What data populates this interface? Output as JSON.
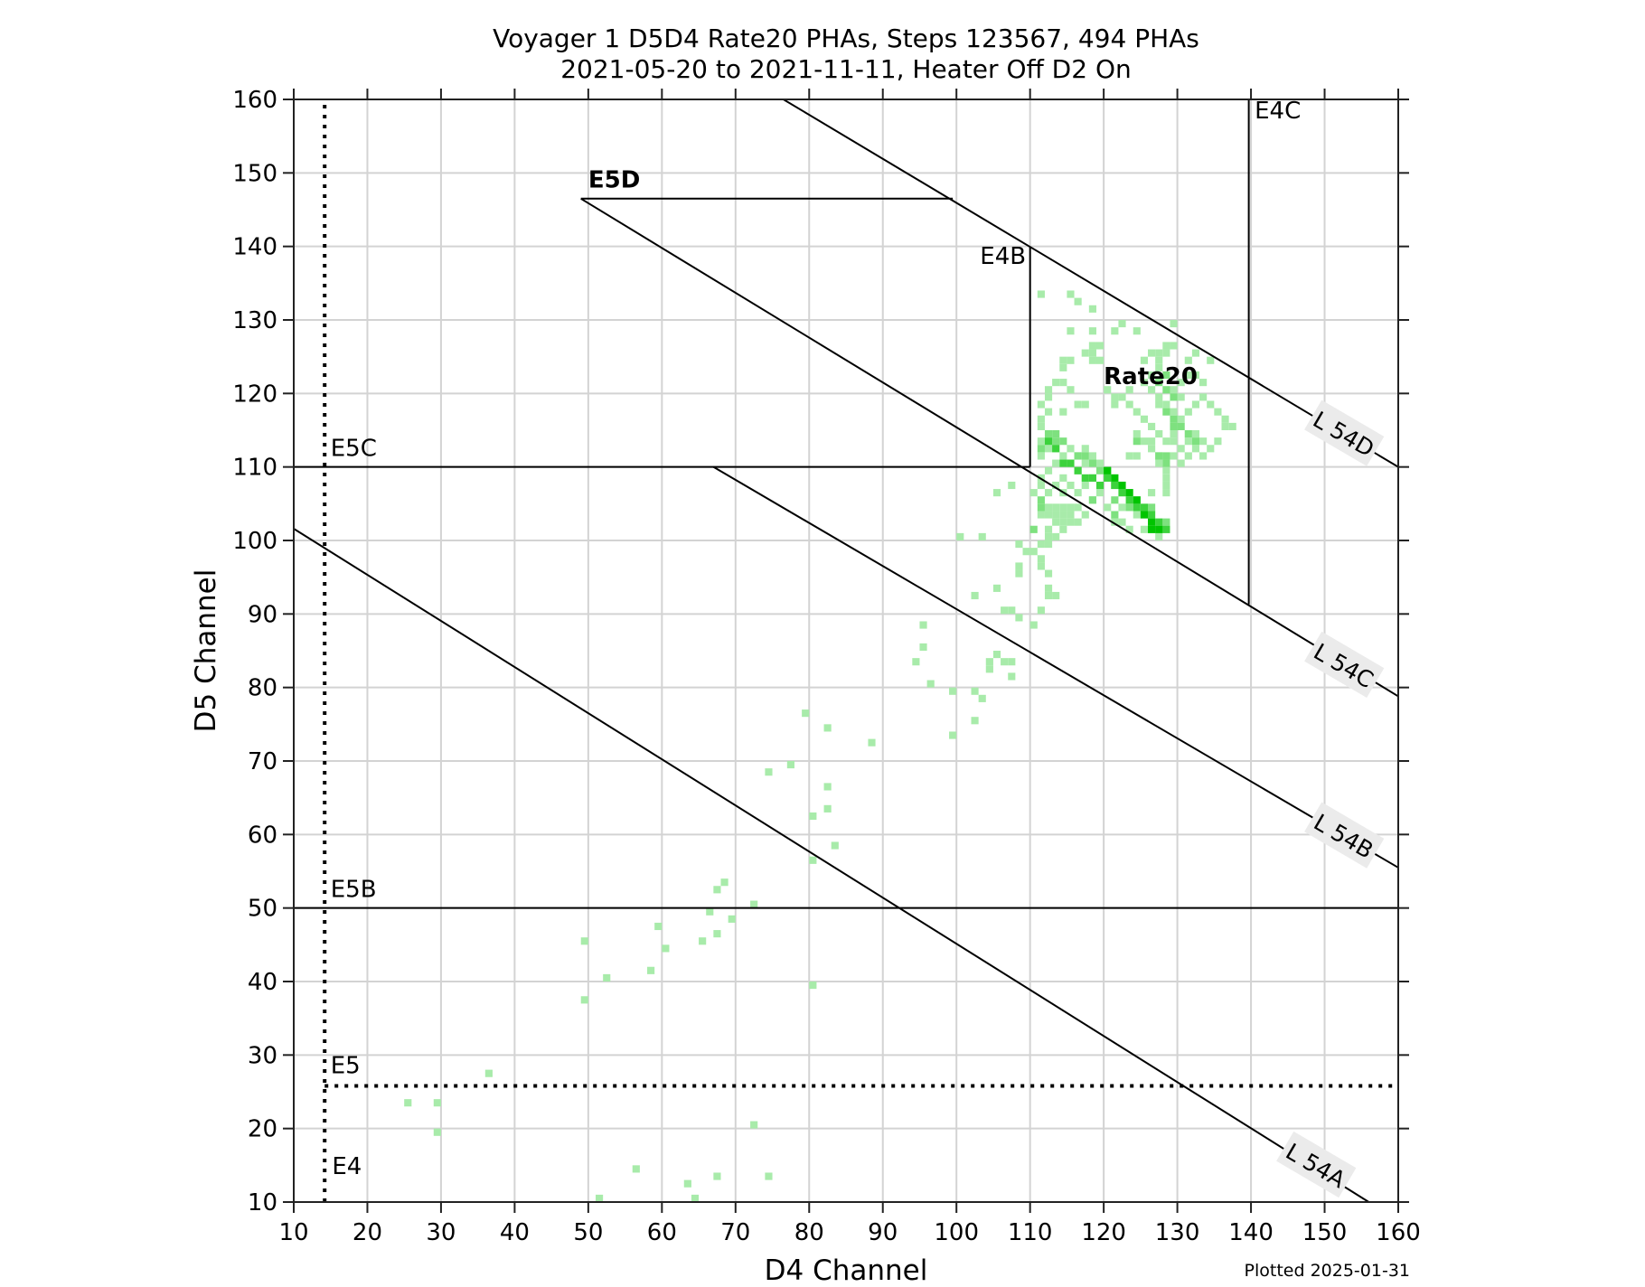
{
  "chart_data": {
    "type": "heatmap",
    "title": "Voyager 1 D5D4 Rate20 PHAs, Steps 123567, 494 PHAs",
    "subtitle": "2021-05-20 to 2021-11-11, Heater Off D2 On",
    "xlabel": "D4 Channel",
    "ylabel": "D5 Channel",
    "xlim": [
      10,
      160
    ],
    "ylim": [
      10,
      160
    ],
    "xticks": [
      10,
      20,
      30,
      40,
      50,
      60,
      70,
      80,
      90,
      100,
      110,
      120,
      130,
      140,
      150,
      160
    ],
    "yticks": [
      10,
      20,
      30,
      40,
      50,
      60,
      70,
      80,
      90,
      100,
      110,
      120,
      130,
      140,
      150,
      160
    ],
    "grid": true,
    "footer": "Plotted 2025-01-31",
    "colors": {
      "level1": "#a8ebaa",
      "level2": "#7ee17f",
      "level3": "#3cd23c",
      "level4": "#00c400",
      "line": "#000000",
      "grid": "#d3d3d3",
      "label_box": "#ebebeb"
    },
    "boundaries": {
      "lines": [
        {
          "name": "E4",
          "type": "vline-dotted",
          "x": 14.2,
          "y": [
            10,
            160
          ]
        },
        {
          "name": "E5",
          "type": "hline-dotted",
          "y": 25.8,
          "x": [
            14.2,
            160
          ]
        },
        {
          "name": "E5B",
          "type": "hline",
          "y": 50,
          "x": [
            10,
            160
          ]
        },
        {
          "name": "E5C",
          "type": "hline",
          "y": 110,
          "x": [
            10,
            110
          ]
        },
        {
          "name": "E5D",
          "type": "hline",
          "y": 146.5,
          "x": [
            49,
            99.5
          ]
        },
        {
          "name": "E4B",
          "type": "vline",
          "x": 110,
          "y": [
            110,
            140
          ]
        },
        {
          "name": "E4C",
          "type": "vline",
          "x": 139.7,
          "y": [
            91.3,
            160
          ]
        },
        {
          "name": "L 54A",
          "type": "diag",
          "p1": [
            10,
            101.6
          ],
          "p2": [
            156,
            10
          ]
        },
        {
          "name": "L 54B",
          "type": "diag",
          "p1": [
            67,
            110
          ],
          "p2": [
            160,
            55.5
          ]
        },
        {
          "name": "L 54C",
          "type": "diag",
          "p1": [
            49,
            146.5
          ],
          "p2": [
            160,
            78.8
          ]
        },
        {
          "name": "L 54D",
          "type": "diag",
          "p1": [
            76.5,
            160
          ],
          "p2": [
            160,
            110
          ]
        }
      ],
      "labels": [
        {
          "text": "E4",
          "x": 15.2,
          "y": 13.8,
          "bold": false
        },
        {
          "text": "E5",
          "x": 15,
          "y": 27.5,
          "bold": false
        },
        {
          "text": "E5B",
          "x": 15,
          "y": 51.5,
          "bold": false
        },
        {
          "text": "E5C",
          "x": 15,
          "y": 111.5,
          "bold": false
        },
        {
          "text": "E5D",
          "x": 50,
          "y": 148,
          "bold": true
        },
        {
          "text": "E4B",
          "x": 103.2,
          "y": 137.6,
          "bold": false
        },
        {
          "text": "E4C",
          "x": 140.5,
          "y": 157.4,
          "bold": false
        },
        {
          "text": "Rate20",
          "x": 120,
          "y": 121.3,
          "bold": true
        }
      ],
      "rotated_labels": [
        {
          "text": "L 54D",
          "x": 152.6,
          "y": 114.5
        },
        {
          "text": "L 54C",
          "x": 152.6,
          "y": 83
        },
        {
          "text": "L 54B",
          "x": 152.6,
          "y": 59.8
        },
        {
          "text": "L 54A",
          "x": 148.8,
          "y": 15
        }
      ]
    },
    "bins": [
      [
        51,
        10,
        1
      ],
      [
        56,
        14,
        1
      ],
      [
        63,
        12,
        1
      ],
      [
        64,
        10,
        1
      ],
      [
        67,
        13,
        1
      ],
      [
        72,
        20,
        1
      ],
      [
        74,
        13,
        1
      ],
      [
        25,
        23,
        1
      ],
      [
        29,
        23,
        1
      ],
      [
        29,
        19,
        1
      ],
      [
        36,
        27,
        1
      ],
      [
        49,
        45,
        1
      ],
      [
        49,
        37,
        1
      ],
      [
        52,
        40,
        1
      ],
      [
        58,
        41,
        1
      ],
      [
        59,
        47,
        1
      ],
      [
        60,
        44,
        1
      ],
      [
        65,
        45,
        1
      ],
      [
        66,
        49,
        1
      ],
      [
        67,
        46,
        1
      ],
      [
        67,
        52,
        1
      ],
      [
        68,
        53,
        1
      ],
      [
        69,
        48,
        1
      ],
      [
        72,
        50,
        1
      ],
      [
        80,
        39,
        1
      ],
      [
        80,
        56,
        1
      ],
      [
        83,
        58,
        1
      ],
      [
        80,
        62,
        1
      ],
      [
        82,
        63,
        1
      ],
      [
        82,
        66,
        1
      ],
      [
        74,
        68,
        1
      ],
      [
        77,
        69,
        1
      ],
      [
        79,
        76,
        1
      ],
      [
        82,
        74,
        1
      ],
      [
        88,
        72,
        1
      ],
      [
        99,
        73,
        1
      ],
      [
        102,
        75,
        1
      ],
      [
        99,
        79,
        1
      ],
      [
        102,
        79,
        1
      ],
      [
        103,
        78,
        1
      ],
      [
        96,
        80,
        1
      ],
      [
        94,
        83,
        1
      ],
      [
        95,
        85,
        1
      ],
      [
        95,
        88,
        1
      ],
      [
        104,
        82,
        1
      ],
      [
        104,
        83,
        1
      ],
      [
        105,
        84,
        1
      ],
      [
        106,
        83,
        1
      ],
      [
        107,
        83,
        1
      ],
      [
        107,
        81,
        1
      ],
      [
        100,
        100,
        1
      ],
      [
        103,
        100,
        1
      ],
      [
        102,
        92,
        1
      ],
      [
        105,
        93,
        1
      ],
      [
        106,
        90,
        1
      ],
      [
        107,
        90,
        1
      ],
      [
        108,
        89,
        1
      ],
      [
        110,
        88,
        1
      ],
      [
        111,
        90,
        1
      ],
      [
        112,
        92,
        1
      ],
      [
        113,
        92,
        1
      ],
      [
        112,
        93,
        1
      ],
      [
        108,
        96,
        1
      ],
      [
        108,
        95,
        1
      ],
      [
        109,
        98,
        1
      ],
      [
        108,
        99,
        1
      ],
      [
        110,
        98,
        1
      ],
      [
        111,
        97,
        1
      ],
      [
        111,
        96,
        1
      ],
      [
        112,
        95,
        1
      ],
      [
        112,
        99,
        1
      ],
      [
        111,
        99,
        1
      ],
      [
        112,
        100,
        1
      ],
      [
        112,
        101,
        1
      ],
      [
        105,
        106,
        1
      ],
      [
        107,
        107,
        1
      ],
      [
        111,
        103,
        1
      ],
      [
        112,
        104,
        1
      ],
      [
        113,
        104,
        1
      ],
      [
        114,
        104,
        1
      ],
      [
        115,
        104,
        1
      ],
      [
        112,
        103,
        1
      ],
      [
        113,
        103,
        1
      ],
      [
        114,
        103,
        1
      ],
      [
        115,
        103,
        1
      ],
      [
        113,
        102,
        1
      ],
      [
        114,
        102,
        1
      ],
      [
        115,
        102,
        1
      ],
      [
        116,
        102,
        1
      ],
      [
        114,
        101,
        1
      ],
      [
        113,
        100,
        1
      ],
      [
        110,
        106,
        1
      ],
      [
        111,
        107,
        1
      ],
      [
        111,
        108,
        1
      ],
      [
        112,
        106,
        1
      ],
      [
        113,
        107,
        1
      ],
      [
        114,
        106,
        1
      ],
      [
        115,
        107,
        1
      ],
      [
        116,
        106,
        1
      ],
      [
        117,
        107,
        1
      ],
      [
        118,
        105,
        1
      ],
      [
        119,
        106,
        1
      ],
      [
        120,
        104,
        1
      ],
      [
        116,
        104,
        1
      ],
      [
        117,
        103,
        1
      ],
      [
        121,
        102,
        1
      ],
      [
        122,
        102,
        1
      ],
      [
        123,
        101,
        1
      ],
      [
        124,
        103,
        1
      ],
      [
        125,
        101,
        1
      ],
      [
        126,
        101,
        1
      ],
      [
        127,
        100,
        1
      ],
      [
        128,
        101,
        1
      ],
      [
        122,
        104,
        1
      ],
      [
        124,
        105,
        1
      ],
      [
        126,
        106,
        1
      ],
      [
        111,
        113,
        1
      ],
      [
        112,
        112,
        1
      ],
      [
        111,
        111,
        1
      ],
      [
        113,
        112,
        1
      ],
      [
        114,
        111,
        1
      ],
      [
        115,
        112,
        1
      ],
      [
        116,
        111,
        1
      ],
      [
        117,
        112,
        1
      ],
      [
        118,
        111,
        1
      ],
      [
        119,
        110,
        1
      ],
      [
        117,
        110,
        1
      ],
      [
        115,
        110,
        1
      ],
      [
        113,
        110,
        1
      ],
      [
        112,
        109,
        1
      ],
      [
        114,
        108,
        1
      ],
      [
        116,
        109,
        1
      ],
      [
        118,
        108,
        1
      ],
      [
        120,
        108,
        1
      ],
      [
        121,
        107,
        1
      ],
      [
        122,
        106,
        1
      ],
      [
        111,
        115,
        1
      ],
      [
        111,
        116,
        1
      ],
      [
        112,
        117,
        1
      ],
      [
        111,
        118,
        1
      ],
      [
        112,
        119,
        1
      ],
      [
        112,
        120,
        1
      ],
      [
        113,
        121,
        1
      ],
      [
        114,
        121,
        1
      ],
      [
        115,
        120,
        1
      ],
      [
        114,
        117,
        1
      ],
      [
        116,
        118,
        1
      ],
      [
        117,
        118,
        1
      ],
      [
        114,
        123,
        1
      ],
      [
        115,
        124,
        1
      ],
      [
        114,
        124,
        1
      ],
      [
        111,
        133,
        1
      ],
      [
        115,
        133,
        1
      ],
      [
        116,
        132,
        1
      ],
      [
        118,
        131,
        1
      ],
      [
        115,
        128,
        1
      ],
      [
        118,
        128,
        1
      ],
      [
        121,
        128,
        1
      ],
      [
        122,
        129,
        1
      ],
      [
        124,
        128,
        1
      ],
      [
        118,
        126,
        1
      ],
      [
        119,
        126,
        1
      ],
      [
        117,
        125,
        1
      ],
      [
        118,
        125,
        1
      ],
      [
        118,
        124,
        1
      ],
      [
        119,
        124,
        1
      ],
      [
        120,
        120,
        1
      ],
      [
        121,
        118,
        1
      ],
      [
        121,
        119,
        1
      ],
      [
        122,
        119,
        1
      ],
      [
        123,
        120,
        1
      ],
      [
        123,
        118,
        1
      ],
      [
        124,
        117,
        1
      ],
      [
        125,
        116,
        1
      ],
      [
        126,
        115,
        1
      ],
      [
        124,
        114,
        1
      ],
      [
        125,
        113,
        1
      ],
      [
        126,
        112,
        1
      ],
      [
        127,
        111,
        1
      ],
      [
        127,
        110,
        1
      ],
      [
        128,
        109,
        1
      ],
      [
        128,
        108,
        1
      ],
      [
        128,
        107,
        1
      ],
      [
        128,
        106,
        1
      ],
      [
        125,
        121,
        1
      ],
      [
        126,
        122,
        1
      ],
      [
        127,
        123,
        1
      ],
      [
        127,
        124,
        1
      ],
      [
        128,
        125,
        1
      ],
      [
        128,
        126,
        1
      ],
      [
        129,
        126,
        1
      ],
      [
        129,
        129,
        1
      ],
      [
        127,
        125,
        1
      ],
      [
        126,
        125,
        1
      ],
      [
        125,
        124,
        1
      ],
      [
        126,
        120,
        1
      ],
      [
        127,
        119,
        1
      ],
      [
        127,
        118,
        1
      ],
      [
        128,
        118,
        1
      ],
      [
        129,
        117,
        1
      ],
      [
        130,
        116,
        1
      ],
      [
        131,
        117,
        1
      ],
      [
        132,
        118,
        1
      ],
      [
        133,
        119,
        1
      ],
      [
        134,
        118,
        1
      ],
      [
        135,
        117,
        1
      ],
      [
        136,
        116,
        1
      ],
      [
        137,
        115,
        1
      ],
      [
        136,
        115,
        1
      ],
      [
        135,
        113,
        1
      ],
      [
        134,
        112,
        1
      ],
      [
        133,
        113,
        1
      ],
      [
        132,
        114,
        1
      ],
      [
        131,
        113,
        1
      ],
      [
        130,
        112,
        1
      ],
      [
        129,
        113,
        1
      ],
      [
        129,
        114,
        1
      ],
      [
        130,
        121,
        1
      ],
      [
        131,
        122,
        1
      ],
      [
        132,
        122,
        1
      ],
      [
        133,
        121,
        1
      ],
      [
        134,
        124,
        1
      ],
      [
        132,
        125,
        1
      ],
      [
        131,
        124,
        1
      ],
      [
        129,
        120,
        1
      ],
      [
        130,
        119,
        1
      ],
      [
        124,
        111,
        1
      ],
      [
        123,
        111,
        1
      ],
      [
        126,
        113,
        1
      ],
      [
        127,
        114,
        1
      ],
      [
        128,
        113,
        1
      ],
      [
        129,
        111,
        1
      ],
      [
        130,
        110,
        1
      ],
      [
        131,
        111,
        1
      ],
      [
        132,
        112,
        1
      ],
      [
        133,
        111,
        1
      ],
      [
        112,
        114,
        2
      ],
      [
        113,
        114,
        2
      ],
      [
        113,
        113,
        2
      ],
      [
        114,
        113,
        2
      ],
      [
        111,
        112,
        2
      ],
      [
        116,
        111,
        2
      ],
      [
        117,
        111,
        2
      ],
      [
        118,
        110,
        2
      ],
      [
        119,
        109,
        2
      ],
      [
        128,
        122,
        2
      ],
      [
        127,
        121,
        2
      ],
      [
        128,
        120,
        2
      ],
      [
        129,
        119,
        2
      ],
      [
        128,
        117,
        2
      ],
      [
        129,
        116,
        2
      ],
      [
        129,
        115,
        2
      ],
      [
        130,
        115,
        2
      ],
      [
        131,
        114,
        2
      ],
      [
        132,
        113,
        2
      ],
      [
        128,
        111,
        2
      ],
      [
        127,
        111,
        2
      ],
      [
        128,
        110,
        2
      ],
      [
        124,
        113,
        2
      ],
      [
        125,
        103,
        2
      ],
      [
        126,
        104,
        2
      ],
      [
        127,
        101,
        2
      ],
      [
        128,
        102,
        2
      ],
      [
        121,
        103,
        2
      ],
      [
        123,
        104,
        2
      ],
      [
        121,
        105,
        2
      ],
      [
        118,
        105,
        2
      ],
      [
        111,
        105,
        2
      ],
      [
        111,
        104,
        2
      ],
      [
        110,
        101,
        2
      ],
      [
        112,
        113,
        3
      ],
      [
        113,
        112,
        3
      ],
      [
        114,
        110,
        3
      ],
      [
        115,
        110,
        3
      ],
      [
        116,
        109,
        3
      ],
      [
        117,
        108,
        3
      ],
      [
        118,
        108,
        3
      ],
      [
        119,
        107,
        3
      ],
      [
        120,
        108,
        3
      ],
      [
        121,
        107,
        3
      ],
      [
        122,
        106,
        3
      ],
      [
        123,
        105,
        3
      ],
      [
        124,
        104,
        3
      ],
      [
        125,
        104,
        3
      ],
      [
        126,
        103,
        3
      ],
      [
        127,
        102,
        3
      ],
      [
        128,
        101,
        3
      ],
      [
        120,
        109,
        3
      ],
      [
        120,
        109,
        4
      ],
      [
        121,
        108,
        4
      ],
      [
        122,
        107,
        4
      ],
      [
        123,
        106,
        4
      ],
      [
        124,
        105,
        4
      ],
      [
        125,
        103,
        4
      ],
      [
        126,
        102,
        4
      ],
      [
        126,
        101,
        4
      ],
      [
        127,
        101,
        4
      ]
    ]
  }
}
